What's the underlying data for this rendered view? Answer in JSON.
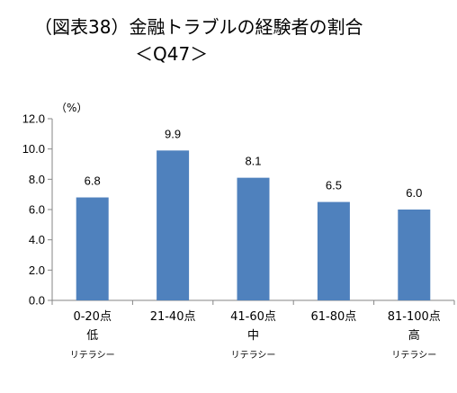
{
  "title_line1": "（図表38）金融トラブルの経験者の割合",
  "title_line2": "＜Q47＞",
  "chart_data": {
    "type": "bar",
    "unit_label": "（%）",
    "categories": [
      {
        "line1": "0-20点",
        "line2": "低",
        "line3": "リテラシー"
      },
      {
        "line1": "21-40点",
        "line2": "",
        "line3": ""
      },
      {
        "line1": "41-60点",
        "line2": "中",
        "line3": "リテラシー"
      },
      {
        "line1": "61-80点",
        "line2": "",
        "line3": ""
      },
      {
        "line1": "81-100点",
        "line2": "高",
        "line3": "リテラシー"
      }
    ],
    "values": [
      6.8,
      9.9,
      8.1,
      6.5,
      6.0
    ],
    "value_labels": [
      "6.8",
      "9.9",
      "8.1",
      "6.5",
      "6.0"
    ],
    "yticks": [
      "0.0",
      "2.0",
      "4.0",
      "6.0",
      "8.0",
      "10.0",
      "12.0"
    ],
    "ylim": [
      0,
      12
    ],
    "bar_color": "#4F81BD",
    "grid": false
  }
}
